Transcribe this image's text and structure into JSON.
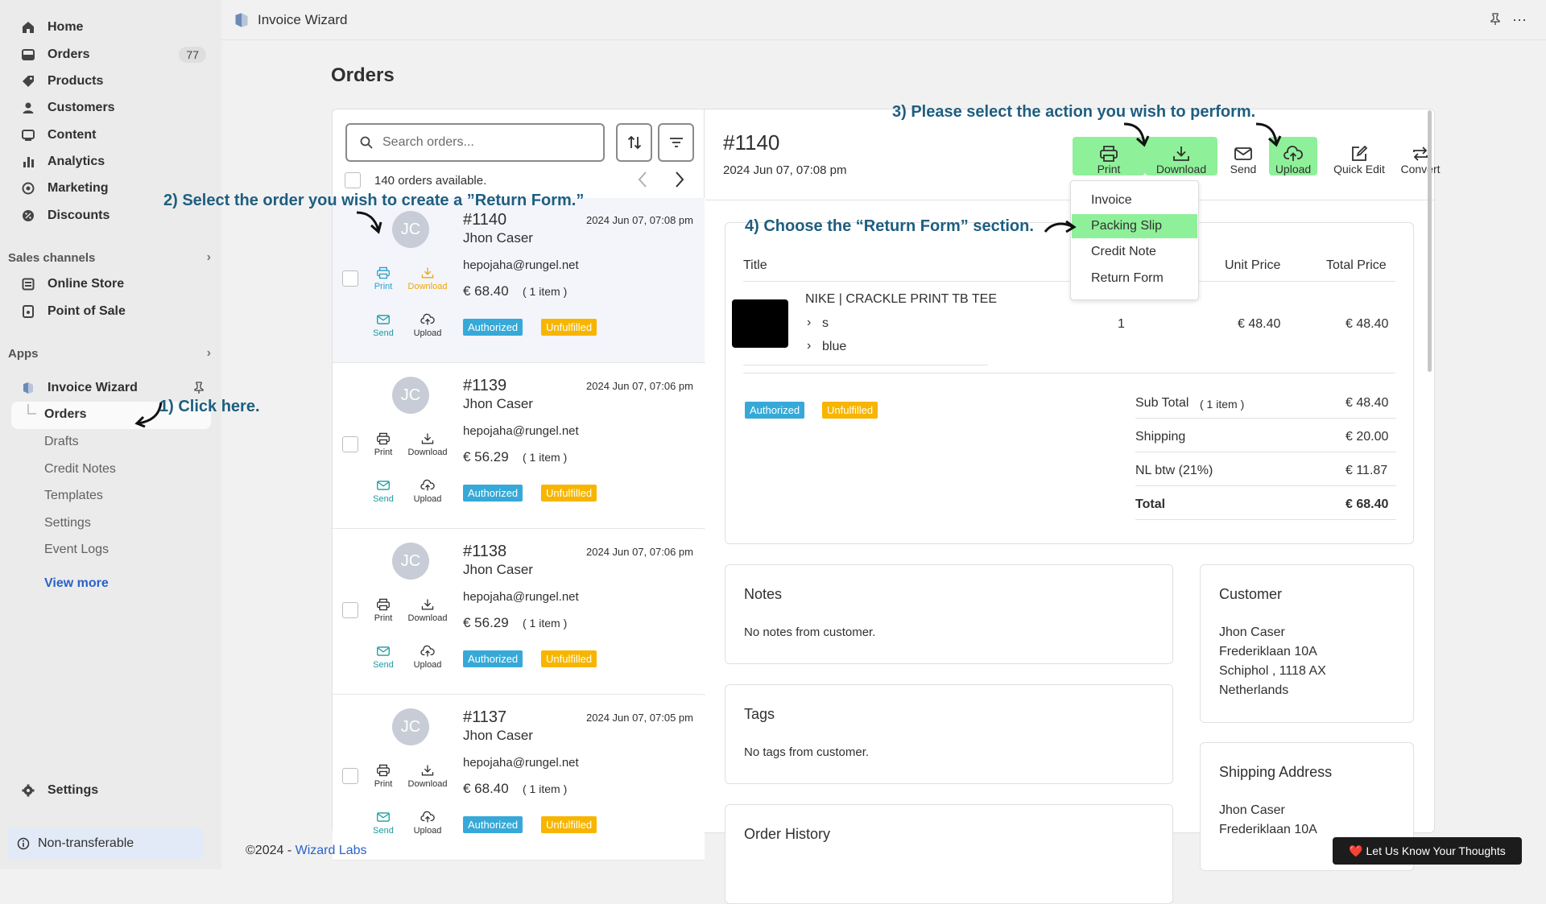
{
  "app_title": "Invoice Wizard",
  "sidebar": {
    "main_items": [
      {
        "label": "Home",
        "icon": "home-icon"
      },
      {
        "label": "Orders",
        "icon": "orders-icon",
        "count": "77"
      },
      {
        "label": "Products",
        "icon": "tag-icon"
      },
      {
        "label": "Customers",
        "icon": "person-icon"
      },
      {
        "label": "Content",
        "icon": "content-icon"
      },
      {
        "label": "Analytics",
        "icon": "bar-chart-icon"
      },
      {
        "label": "Marketing",
        "icon": "target-icon"
      },
      {
        "label": "Discounts",
        "icon": "discount-icon"
      }
    ],
    "sales_channels_title": "Sales channels",
    "sales_channels": [
      {
        "label": "Online Store",
        "icon": "store-icon"
      },
      {
        "label": "Point of Sale",
        "icon": "pos-icon"
      }
    ],
    "apps_title": "Apps",
    "app_name": "Invoice Wizard",
    "app_subitems": [
      "Orders",
      "Drafts",
      "Credit Notes",
      "Templates",
      "Settings",
      "Event Logs"
    ],
    "view_more": "View more",
    "settings_label": "Settings",
    "non_transferable": "Non-transferable"
  },
  "page_title": "Orders",
  "search": {
    "placeholder": "Search orders..."
  },
  "orders_available": "140 orders available.",
  "action_labels": {
    "print": "Print",
    "download": "Download",
    "send": "Send",
    "upload": "Upload"
  },
  "orders": [
    {
      "initials": "JC",
      "id": "#1140",
      "date": "2024 Jun 07, 07:08 pm",
      "name": "Jhon Caser",
      "email": "hepojaha@rungel.net",
      "amount": "€ 68.40",
      "qty": "( 1 item )",
      "payment": "Authorized",
      "fulfillment": "Unfulfilled"
    },
    {
      "initials": "JC",
      "id": "#1139",
      "date": "2024 Jun 07, 07:06 pm",
      "name": "Jhon Caser",
      "email": "hepojaha@rungel.net",
      "amount": "€ 56.29",
      "qty": "( 1 item )",
      "payment": "Authorized",
      "fulfillment": "Unfulfilled"
    },
    {
      "initials": "JC",
      "id": "#1138",
      "date": "2024 Jun 07, 07:06 pm",
      "name": "Jhon Caser",
      "email": "hepojaha@rungel.net",
      "amount": "€ 56.29",
      "qty": "( 1 item )",
      "payment": "Authorized",
      "fulfillment": "Unfulfilled"
    },
    {
      "initials": "JC",
      "id": "#1137",
      "date": "2024 Jun 07, 07:05 pm",
      "name": "Jhon Caser",
      "email": "hepojaha@rungel.net",
      "amount": "€ 68.40",
      "qty": "( 1 item )",
      "payment": "Authorized",
      "fulfillment": "Unfulfilled"
    }
  ],
  "detail": {
    "id": "#1140",
    "date": "2024 Jun 07, 07:08 pm",
    "toolbar": {
      "print": "Print",
      "download": "Download",
      "send": "Send",
      "upload": "Upload",
      "quick_edit": "Quick Edit",
      "convert": "Convert"
    },
    "dropdown": [
      "Invoice",
      "Packing Slip",
      "Credit Note",
      "Return Form"
    ],
    "table_headers": {
      "title": "Title",
      "unit_price": "Unit Price",
      "total_price": "Total Price"
    },
    "line_item": {
      "name": "NIKE | CRACKLE PRINT TB TEE",
      "variant1": "s",
      "variant2": "blue",
      "qty": "1",
      "unit_price": "€ 48.40",
      "total_price": "€ 48.40"
    },
    "payment": "Authorized",
    "fulfillment": "Unfulfilled",
    "summary": {
      "subtotal_label": "Sub Total",
      "subtotal_qty": "( 1 item )",
      "subtotal": "€ 48.40",
      "shipping_label": "Shipping",
      "shipping": "€ 20.00",
      "tax_label": "NL btw (21%)",
      "tax": "€ 11.87",
      "total_label": "Total",
      "total": "€ 68.40"
    },
    "notes_title": "Notes",
    "notes_text": "No notes from customer.",
    "tags_title": "Tags",
    "tags_text": "No tags from customer.",
    "history_title": "Order History",
    "customer_title": "Customer",
    "customer_lines": [
      "Jhon Caser",
      "Frederiklaan 10A",
      "Schiphol , 1118 AX",
      "Netherlands"
    ],
    "shipping_title": "Shipping Address",
    "shipping_lines": [
      "Jhon Caser",
      "Frederiklaan 10A"
    ]
  },
  "annotations": {
    "a1": "1) Click here.",
    "a2": "2) Select the order you wish to create a ”Return Form.”",
    "a3": "3) Please select the action you wish to perform.",
    "a4": "4) Choose the “Return Form” section."
  },
  "footer": {
    "copyright": "©2024 - ",
    "company": "Wizard Labs",
    "feedback": "❤️ Let Us Know Your Thoughts"
  },
  "colors": {
    "authorized": "#36a9d8",
    "unfulfilled": "#f7b500",
    "highlight": "#8ff09a",
    "annotation": "#1e5e80",
    "link": "#2a62c9"
  }
}
